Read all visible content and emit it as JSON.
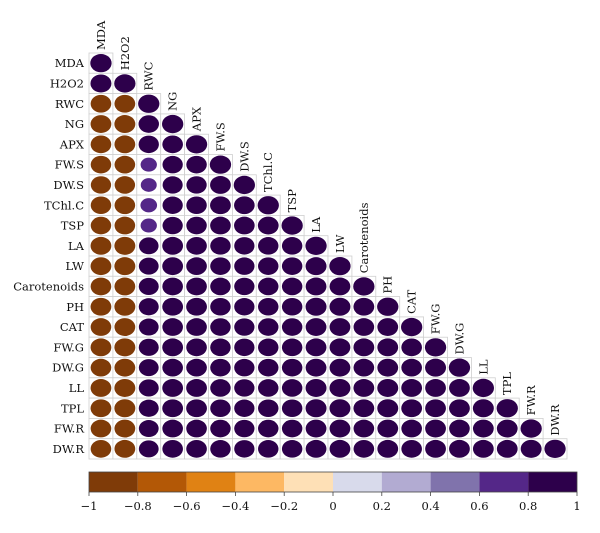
{
  "chart_data": {
    "type": "heatmap",
    "variables": [
      "MDA",
      "H2O2",
      "RWC",
      "NG",
      "APX",
      "FW.S",
      "DW.S",
      "TChl.C",
      "TSP",
      "LA",
      "LW",
      "Carotenoids",
      "PH",
      "CAT",
      "FW.G",
      "DW.G",
      "LL",
      "TPL",
      "FW.R",
      "DW.R"
    ],
    "correlation_rows": [
      [
        1
      ],
      [
        0.98,
        1
      ],
      [
        -0.96,
        -0.97,
        1
      ],
      [
        -0.97,
        -0.98,
        0.95,
        1
      ],
      [
        -0.96,
        -0.97,
        0.94,
        0.96,
        1
      ],
      [
        -0.95,
        -0.96,
        0.7,
        0.94,
        0.95,
        1
      ],
      [
        -0.94,
        -0.95,
        0.68,
        0.93,
        0.94,
        0.97,
        1
      ],
      [
        -0.95,
        -0.96,
        0.72,
        0.94,
        0.95,
        0.97,
        0.96,
        1
      ],
      [
        -0.95,
        -0.96,
        0.7,
        0.94,
        0.95,
        0.96,
        0.96,
        0.97,
        1
      ],
      [
        -0.97,
        -0.98,
        0.9,
        0.97,
        0.96,
        0.95,
        0.94,
        0.95,
        0.95,
        1
      ],
      [
        -0.97,
        -0.98,
        0.91,
        0.97,
        0.96,
        0.95,
        0.94,
        0.95,
        0.95,
        0.98,
        1
      ],
      [
        -0.96,
        -0.97,
        0.92,
        0.96,
        0.96,
        0.95,
        0.94,
        0.95,
        0.95,
        0.97,
        0.97,
        1
      ],
      [
        -0.97,
        -0.98,
        0.92,
        0.97,
        0.97,
        0.95,
        0.94,
        0.95,
        0.95,
        0.98,
        0.98,
        0.97,
        1
      ],
      [
        -0.96,
        -0.97,
        0.91,
        0.96,
        0.96,
        0.95,
        0.94,
        0.95,
        0.95,
        0.97,
        0.97,
        0.96,
        0.97,
        1
      ],
      [
        -0.97,
        -0.98,
        0.92,
        0.97,
        0.96,
        0.95,
        0.94,
        0.95,
        0.95,
        0.97,
        0.97,
        0.97,
        0.97,
        0.96,
        1
      ],
      [
        -0.96,
        -0.97,
        0.91,
        0.96,
        0.96,
        0.95,
        0.94,
        0.95,
        0.95,
        0.97,
        0.97,
        0.96,
        0.97,
        0.96,
        0.98,
        1
      ],
      [
        -0.97,
        -0.98,
        0.92,
        0.97,
        0.97,
        0.95,
        0.94,
        0.95,
        0.95,
        0.98,
        0.98,
        0.97,
        0.98,
        0.97,
        0.97,
        0.97,
        1
      ],
      [
        -0.97,
        -0.98,
        0.92,
        0.97,
        0.97,
        0.95,
        0.94,
        0.95,
        0.95,
        0.98,
        0.98,
        0.97,
        0.98,
        0.97,
        0.97,
        0.97,
        0.98,
        1
      ],
      [
        -0.96,
        -0.97,
        0.91,
        0.96,
        0.96,
        0.95,
        0.94,
        0.95,
        0.95,
        0.97,
        0.97,
        0.96,
        0.97,
        0.96,
        0.97,
        0.96,
        0.97,
        0.97,
        1
      ],
      [
        -0.96,
        -0.97,
        0.91,
        0.96,
        0.96,
        0.95,
        0.94,
        0.95,
        0.95,
        0.97,
        0.97,
        0.96,
        0.97,
        0.96,
        0.97,
        0.97,
        0.97,
        0.97,
        0.98,
        1
      ]
    ],
    "colorbar": {
      "range": [
        -1,
        1
      ],
      "ticks": [
        "−1",
        "−0.8",
        "−0.6",
        "−0.4",
        "−0.2",
        "0",
        "0.2",
        "0.4",
        "0.6",
        "0.8",
        "1"
      ],
      "colors": [
        "#7f3b08",
        "#b35806",
        "#e08214",
        "#fdb863",
        "#fee0b6",
        "#d8daeb",
        "#b2abd2",
        "#8073ac",
        "#542788",
        "#2d004b"
      ]
    },
    "grid": true,
    "legend_position": "bottom"
  }
}
